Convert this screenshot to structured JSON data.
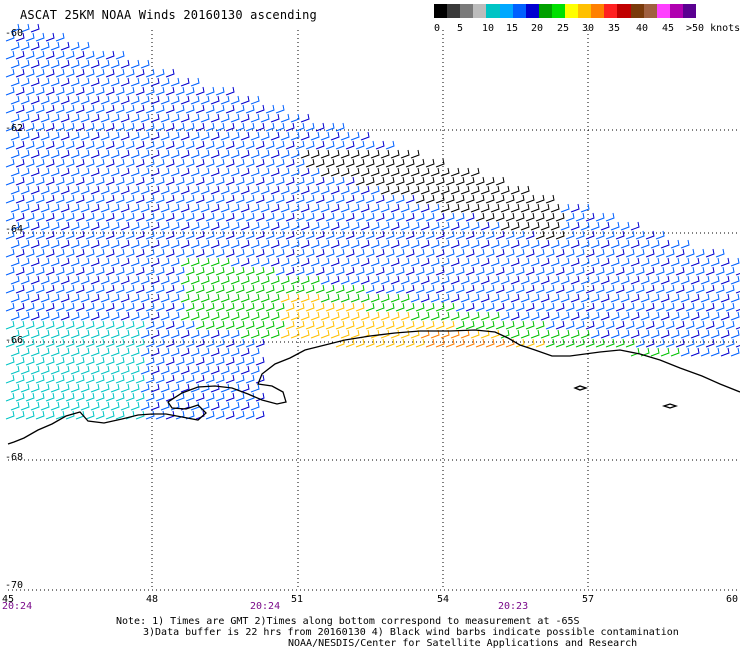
{
  "title": "ASCAT 25KM NOAA Winds 20160130 ascending",
  "legend": {
    "colors": [
      "#000000",
      "#3a3a3a",
      "#7a7a7a",
      "#bcbcbc",
      "#00c4c4",
      "#00a8ff",
      "#0060ff",
      "#0000d0",
      "#00a000",
      "#00e000",
      "#ffff00",
      "#ffc000",
      "#ff8000",
      "#ff2020",
      "#c00000",
      "#7a3a0a",
      "#a06040",
      "#ff40ff",
      "#b000b0",
      "#5a0090"
    ],
    "labels": [
      "0",
      "5",
      "10",
      "15",
      "20",
      "25",
      "30",
      "35",
      "40",
      "45",
      ">50 knots"
    ]
  },
  "latitudes": [
    "-60",
    "-62",
    "-64",
    "-66",
    "-68",
    "-70"
  ],
  "longitudes": [
    "45",
    "48",
    "51",
    "54",
    "57",
    "60"
  ],
  "times": [
    "20:24",
    "20:24",
    "20:23"
  ],
  "notes": {
    "line1": "Note: 1) Times are GMT 2)Times along bottom correspond to measurement at -65S",
    "line2": "3)Data buffer is 22 hrs from 20160130 4) Black wind barbs indicate possible contamination",
    "line3": "NOAA/NESDIS/Center for Satellite Applications and Research"
  }
}
